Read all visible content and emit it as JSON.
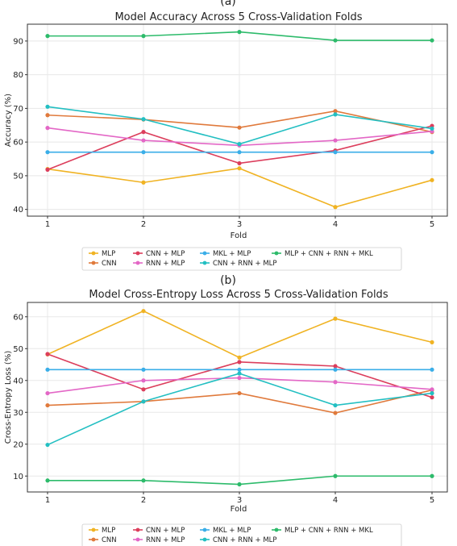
{
  "chart_data": [
    {
      "panel_label": "(a)",
      "type": "line",
      "title": "Model Accuracy Across 5 Cross-Validation Folds",
      "xlabel": "Fold",
      "ylabel": "Accuracy (%)",
      "x": [
        1,
        2,
        3,
        4,
        5
      ],
      "x_ticks": [
        "1",
        "2",
        "3",
        "4",
        "5"
      ],
      "y_ticks": [
        "40",
        "50",
        "60",
        "70",
        "80",
        "90"
      ],
      "ylim": [
        38,
        95
      ],
      "grid": true,
      "legend_position": "bottom",
      "series": [
        {
          "name": "MLP",
          "color": "#f0b323",
          "values": [
            52,
            48,
            52.2,
            40.7,
            48.7
          ]
        },
        {
          "name": "CNN",
          "color": "#e07a3c",
          "values": [
            68,
            66.7,
            64.3,
            69.2,
            63
          ]
        },
        {
          "name": "CNN + MLP",
          "color": "#dc3e5c",
          "values": [
            51.8,
            63,
            53.7,
            57.5,
            64.8
          ]
        },
        {
          "name": "RNN + MLP",
          "color": "#e367c6",
          "values": [
            64.2,
            60.5,
            59,
            60.5,
            63.2
          ]
        },
        {
          "name": "MKL + MLP",
          "color": "#3aaee8",
          "values": [
            57,
            57,
            57,
            57,
            57
          ]
        },
        {
          "name": "CNN + RNN + MLP",
          "color": "#23bfc2",
          "values": [
            70.5,
            66.8,
            59.4,
            68.2,
            64
          ]
        },
        {
          "name": "MLP + CNN + RNN + MKL",
          "color": "#2dbb6b",
          "values": [
            91.5,
            91.5,
            92.7,
            90.2,
            90.2
          ]
        }
      ]
    },
    {
      "panel_label": "(b)",
      "type": "line",
      "title": "Model Cross-Entropy Loss Across 5 Cross-Validation Folds",
      "xlabel": "Fold",
      "ylabel": "Cross-Entropy Loss (%)",
      "x": [
        1,
        2,
        3,
        4,
        5
      ],
      "x_ticks": [
        "1",
        "2",
        "3",
        "4",
        "5"
      ],
      "y_ticks": [
        "10",
        "20",
        "30",
        "40",
        "50",
        "60"
      ],
      "ylim": [
        5,
        64.5
      ],
      "grid": true,
      "legend_position": "bottom",
      "series": [
        {
          "name": "MLP",
          "color": "#f0b323",
          "values": [
            48.2,
            61.8,
            47.2,
            59.4,
            52
          ]
        },
        {
          "name": "CNN",
          "color": "#e07a3c",
          "values": [
            32.2,
            33.4,
            36,
            29.8,
            37
          ]
        },
        {
          "name": "CNN + MLP",
          "color": "#dc3e5c",
          "values": [
            48.3,
            37.2,
            45.8,
            44.5,
            34.7
          ]
        },
        {
          "name": "RNN + MLP",
          "color": "#e367c6",
          "values": [
            36,
            40,
            40.8,
            39.5,
            37.2
          ]
        },
        {
          "name": "MKL + MLP",
          "color": "#3aaee8",
          "values": [
            43.4,
            43.4,
            43.4,
            43.4,
            43.4
          ]
        },
        {
          "name": "CNN + RNN + MLP",
          "color": "#23bfc2",
          "values": [
            19.8,
            33.4,
            42.2,
            32.2,
            36
          ]
        },
        {
          "name": "MLP + CNN + RNN + MKL",
          "color": "#2dbb6b",
          "values": [
            8.6,
            8.6,
            7.4,
            10,
            10
          ]
        }
      ]
    }
  ]
}
